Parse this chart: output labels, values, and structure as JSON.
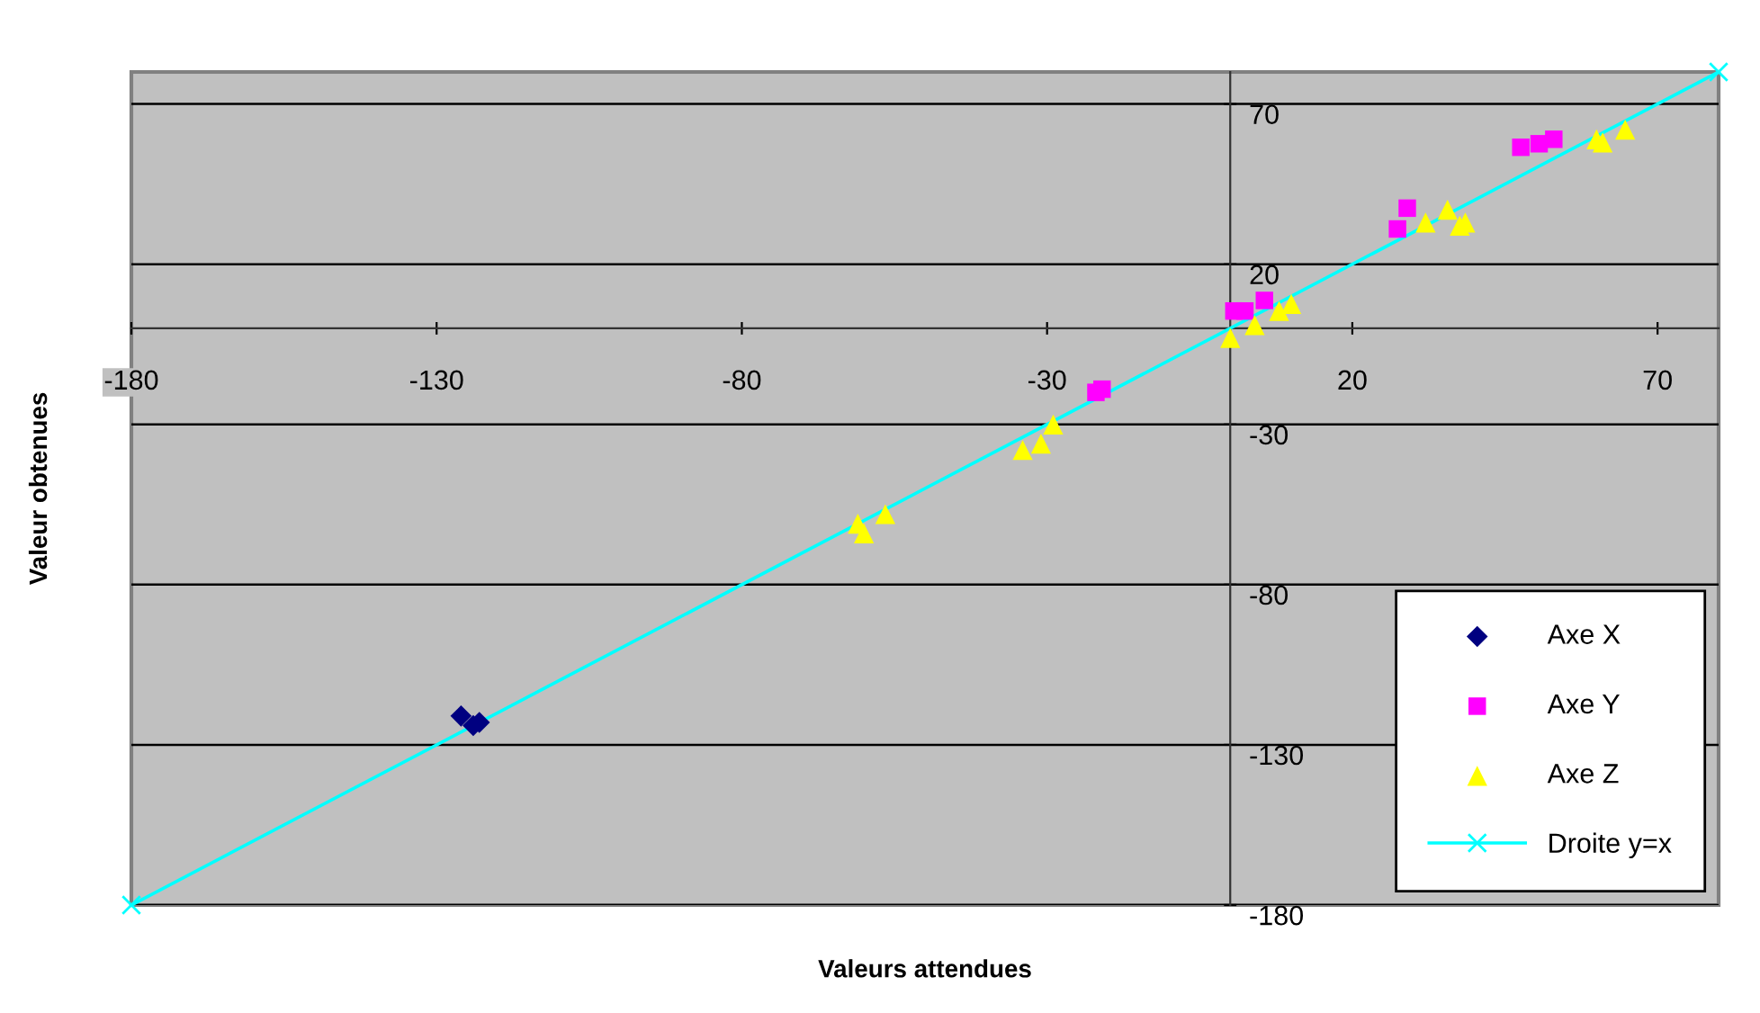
{
  "chart_data": {
    "type": "scatter",
    "xlabel": "Valeurs attendues",
    "ylabel": "Valeur obtenues",
    "xlim": [
      -180,
      80
    ],
    "ylim": [
      -180,
      80
    ],
    "xticks": [
      -180,
      -130,
      -80,
      -30,
      20,
      70
    ],
    "yticks": [
      -180,
      -130,
      -80,
      -30,
      20,
      70
    ],
    "grid": "y",
    "legend": "bottom right",
    "series": [
      {
        "name": "Axe X",
        "color": "#000080",
        "marker": "diamond",
        "x": [
          -126,
          -125,
          -124,
          -123
        ],
        "values": [
          -121,
          null,
          -124,
          -123
        ]
      },
      {
        "name": "Axe Y",
        "color": "#ff00ff",
        "marker": "square",
        "x": [
          -22,
          -21,
          0.6,
          2.4,
          5.6,
          26.5,
          27.4,
          29,
          47.6,
          50.6,
          53
        ],
        "values": [
          -20,
          -19,
          5.4,
          5.4,
          8.7,
          null,
          31,
          37.5,
          56.5,
          57.6,
          59
        ]
      },
      {
        "name": "Axe Z",
        "color": "#ffff00",
        "marker": "triangle",
        "x": [
          -61,
          -60,
          -56.5,
          -34,
          -31,
          -29,
          0,
          4,
          8,
          10,
          32,
          35.6,
          37.6,
          38.5,
          60,
          61,
          64.7
        ],
        "values": [
          -61,
          -64,
          -58,
          -38,
          -36,
          -30,
          -3,
          1,
          5.4,
          7.6,
          33,
          37,
          32,
          33,
          59,
          58,
          62
        ]
      },
      {
        "name": "Droite y=x",
        "type": "line",
        "color": "#00ffff",
        "marker": "cross",
        "line_style": "solid",
        "x": [
          -180,
          80
        ],
        "values": [
          -180,
          80
        ]
      }
    ]
  }
}
